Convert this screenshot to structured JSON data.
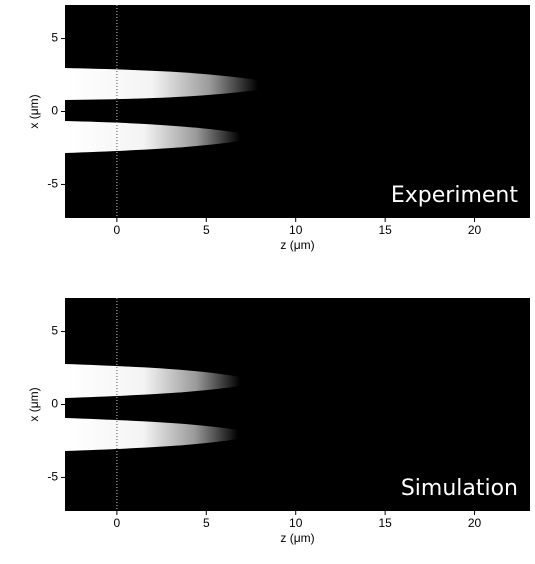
{
  "chart_data": [
    {
      "type": "image",
      "annotation": "Experiment",
      "xlabel": "z (μm)",
      "ylabel": "x (μm)",
      "xlim": [
        -2.9,
        23.1
      ],
      "ylim": [
        -7.3,
        7.3
      ],
      "xticks": [
        0,
        5,
        10,
        15,
        20
      ],
      "yticks": [
        -5,
        0,
        5
      ],
      "vline": 0
    },
    {
      "type": "image",
      "annotation": "Simulation",
      "xlabel": "z (μm)",
      "ylabel": "x (μm)",
      "xlim": [
        -2.9,
        23.1
      ],
      "ylim": [
        -7.3,
        7.3
      ],
      "xticks": [
        0,
        5,
        10,
        15,
        20
      ],
      "yticks": [
        -5,
        0,
        5
      ],
      "vline": 0
    }
  ]
}
